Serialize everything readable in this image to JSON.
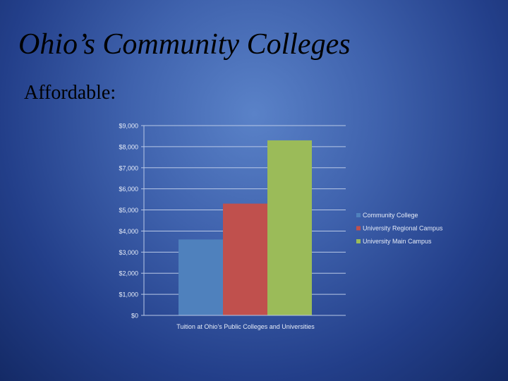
{
  "slide": {
    "title": "Ohio’s Community Colleges",
    "subtitle": "Affordable:"
  },
  "chart_data": {
    "type": "bar",
    "categories": [
      "Tuition at Ohio’s Public Colleges and Universities"
    ],
    "series": [
      {
        "name": "Community College",
        "values": [
          3600
        ],
        "color": "#4f81bd"
      },
      {
        "name": "University Regional Campus",
        "values": [
          5300
        ],
        "color": "#c0504d"
      },
      {
        "name": "University Main Campus",
        "values": [
          8300
        ],
        "color": "#9bbb59"
      }
    ],
    "ylim": [
      0,
      9000
    ],
    "yticks": [
      "$0",
      "$1,000",
      "$2,000",
      "$3,000",
      "$4,000",
      "$5,000",
      "$6,000",
      "$7,000",
      "$8,000",
      "$9,000"
    ],
    "xlabel": "",
    "ylabel": "",
    "grid": true,
    "legend": "right"
  }
}
